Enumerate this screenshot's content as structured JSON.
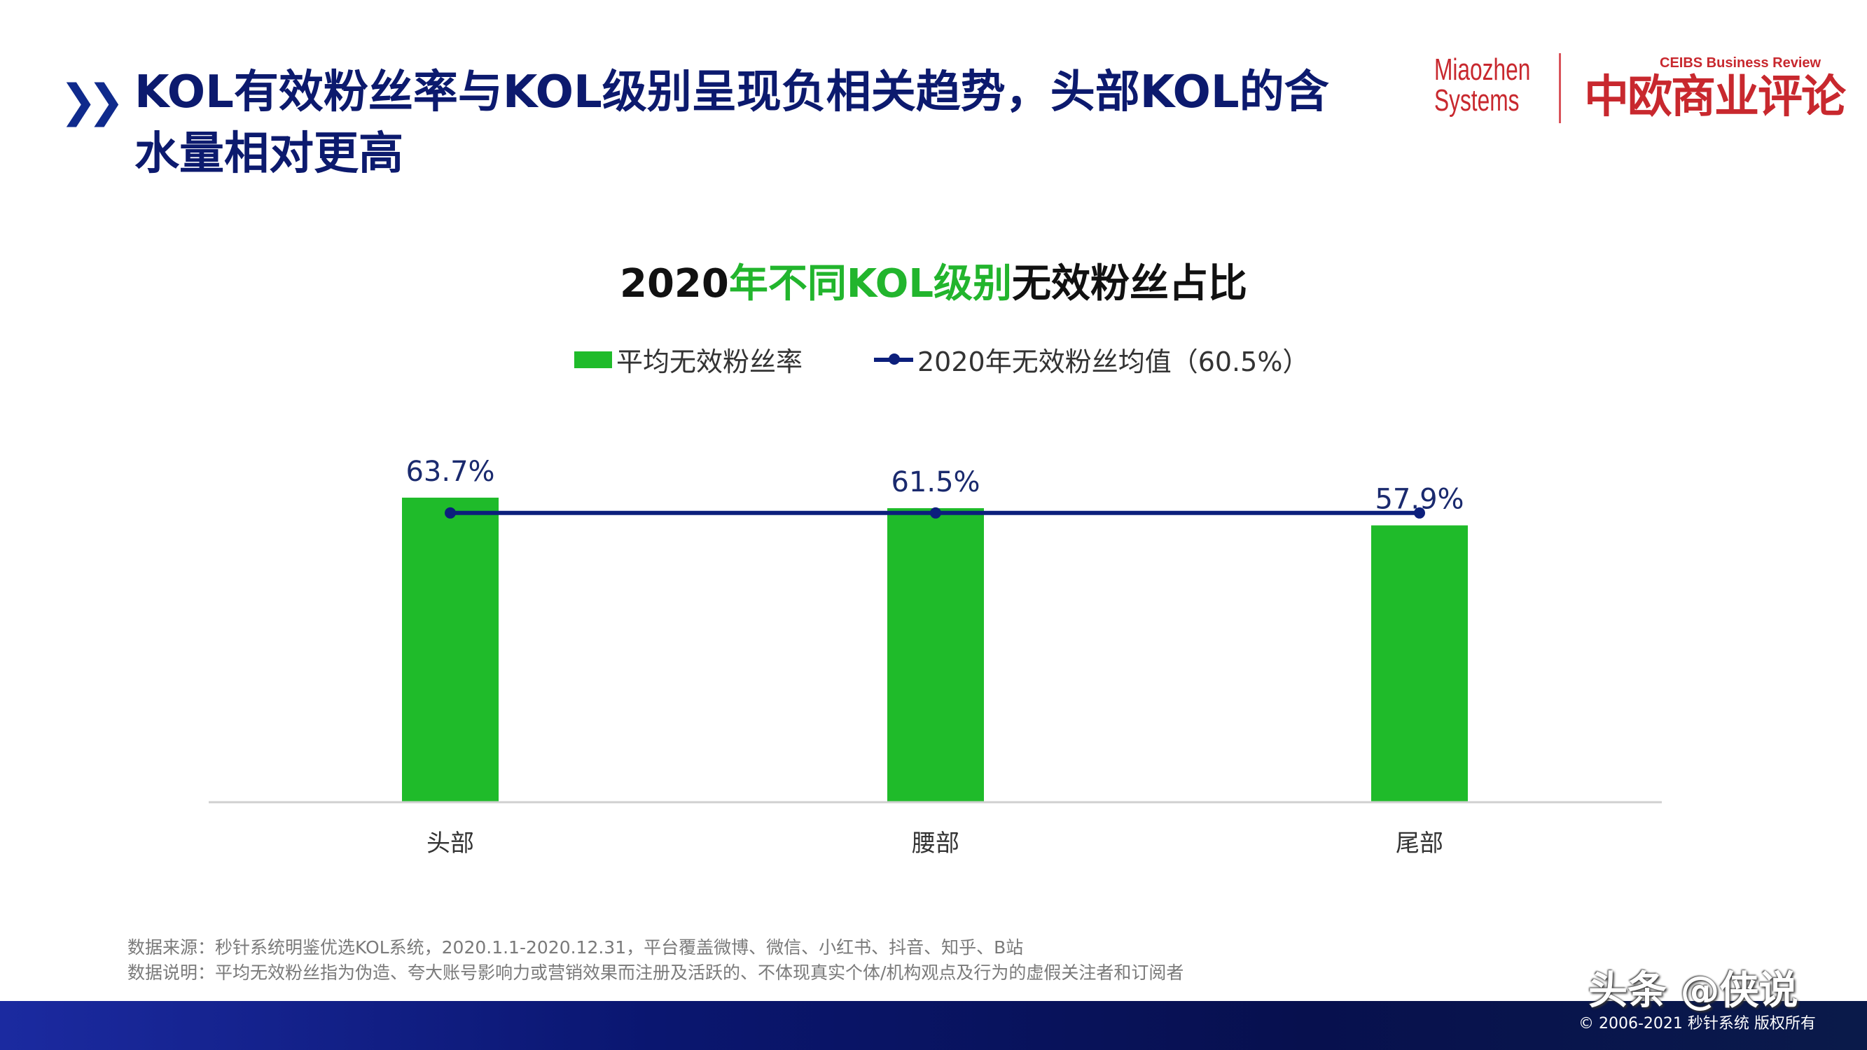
{
  "header": {
    "chevron_icon": "double-chevron-right-icon",
    "headline": "KOL有效粉丝率与KOL级别呈现负相关趋势，头部KOL的含水量相对更高"
  },
  "logos": {
    "miaozhen_line1": "Miaozhen",
    "miaozhen_line2": "Systems",
    "ceibs_en": "CEIBS Business Review",
    "ceibs_cn": "中欧商业评论"
  },
  "chart_data": {
    "type": "bar",
    "title_parts": [
      "2020",
      "年不同KOL级别",
      "无效粉丝占比"
    ],
    "categories": [
      "头部",
      "腰部",
      "尾部"
    ],
    "series": [
      {
        "name": "平均无效粉丝率",
        "type": "bar",
        "values": [
          63.7,
          61.5,
          57.9
        ],
        "labels": [
          "63.7%",
          "61.5%",
          "57.9%"
        ],
        "color": "#1fbb2a"
      },
      {
        "name": "2020年无效粉丝均值（60.5%）",
        "type": "line",
        "values": [
          60.5,
          60.5,
          60.5
        ],
        "color": "#0c1f7c"
      }
    ],
    "ylim": [
      0,
      100
    ],
    "grid": false,
    "legend": "top-center",
    "title_highlight_color": "#22b52d"
  },
  "notes": {
    "source": "数据来源：秒针系统明鉴优选KOL系统，2020.1.1-2020.12.31，平台覆盖微博、微信、小红书、抖音、知乎、B站",
    "definition": "数据说明：平均无效粉丝指为伪造、夸大账号影响力或营销效果而注册及活跃的、不体现真实个体/机构观点及行为的虚假关注者和订阅者"
  },
  "footer": {
    "watermark": "头条 @侠说",
    "copyright": "© 2006-2021 秒针系统 版权所有"
  }
}
